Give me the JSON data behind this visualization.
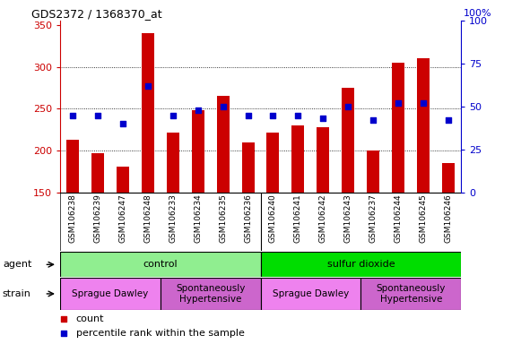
{
  "title": "GDS2372 / 1368370_at",
  "samples": [
    "GSM106238",
    "GSM106239",
    "GSM106247",
    "GSM106248",
    "GSM106233",
    "GSM106234",
    "GSM106235",
    "GSM106236",
    "GSM106240",
    "GSM106241",
    "GSM106242",
    "GSM106243",
    "GSM106237",
    "GSM106244",
    "GSM106245",
    "GSM106246"
  ],
  "counts": [
    213,
    197,
    181,
    340,
    222,
    248,
    265,
    210,
    222,
    230,
    228,
    275,
    200,
    305,
    310,
    185
  ],
  "percentiles": [
    45,
    45,
    40,
    62,
    45,
    48,
    50,
    45,
    45,
    45,
    43,
    50,
    42,
    52,
    52,
    42
  ],
  "count_color": "#cc0000",
  "percentile_color": "#0000cc",
  "ylim_left": [
    150,
    355
  ],
  "ylim_right": [
    0,
    100
  ],
  "yticks_left": [
    150,
    200,
    250,
    300,
    350
  ],
  "yticks_right": [
    0,
    25,
    50,
    75,
    100
  ],
  "grid_yticks": [
    200,
    250,
    300
  ],
  "control_color": "#90ee90",
  "sulfurdioxide_color": "#00dd00",
  "sprague_color": "#ee82ee",
  "hypertensive_color": "#cc66cc",
  "agent_groups": [
    {
      "label": "control",
      "start": 0,
      "end": 8
    },
    {
      "label": "sulfur dioxide",
      "start": 8,
      "end": 16
    }
  ],
  "strain_groups": [
    {
      "label": "Sprague Dawley",
      "start": 0,
      "end": 4,
      "type": "sprague"
    },
    {
      "label": "Spontaneously\nHypertensive",
      "start": 4,
      "end": 8,
      "type": "hyper"
    },
    {
      "label": "Sprague Dawley",
      "start": 8,
      "end": 12,
      "type": "sprague"
    },
    {
      "label": "Spontaneously\nHypertensive",
      "start": 12,
      "end": 16,
      "type": "hyper"
    }
  ],
  "bar_width": 0.5,
  "sample_area_bg": "#d3d3d3",
  "bg_color": "#ffffff"
}
